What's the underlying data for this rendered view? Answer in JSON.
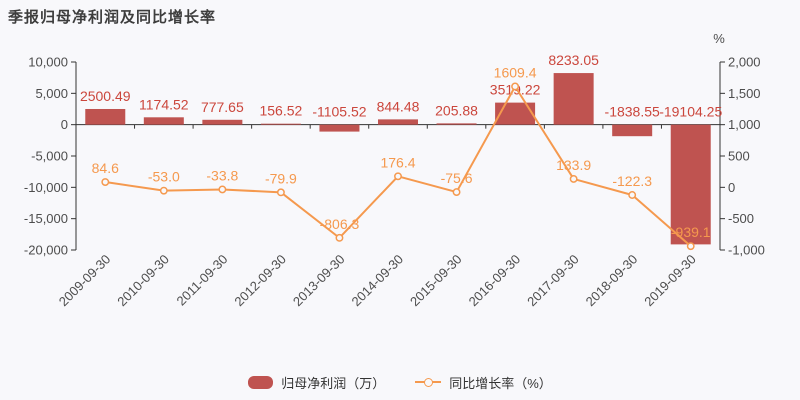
{
  "colors": {
    "background": "#f8f8fb",
    "bar": "#bf5350",
    "bar_label": "#cb463c",
    "line": "#f5994e",
    "axis": "#333333",
    "text": "#4d4d4d",
    "title": "#3d3d3d",
    "legend_text": "#333333"
  },
  "legend": {
    "bar_label": "归母净利润（万）",
    "line_label": "同比增长率（%）"
  },
  "chart_data": {
    "type": "bar",
    "title": "季报归母净利润及同比增长率",
    "categories": [
      "2009-09-30",
      "2010-09-30",
      "2011-09-30",
      "2012-09-30",
      "2013-09-30",
      "2014-09-30",
      "2015-09-30",
      "2016-09-30",
      "2017-09-30",
      "2018-09-30",
      "2019-09-30"
    ],
    "series": [
      {
        "name": "归母净利润（万）",
        "type": "bar",
        "y_axis": "left",
        "values": [
          2500.49,
          1174.52,
          777.65,
          156.52,
          -1105.52,
          844.48,
          205.88,
          3519.22,
          8233.05,
          -1838.55,
          -19104.25
        ],
        "labels": [
          "2500.49",
          "1174.52",
          "777.65",
          "156.52",
          "-1105.52",
          "844.48",
          "205.88",
          "3519.22",
          "8233.05",
          "-1838.55",
          "-19104.25"
        ]
      },
      {
        "name": "同比增长率（%）",
        "type": "line",
        "y_axis": "right",
        "values": [
          84.6,
          -53.0,
          -33.8,
          -79.9,
          -806.3,
          176.4,
          -75.6,
          1609.4,
          133.9,
          -122.3,
          -939.1
        ],
        "labels": [
          "84.6",
          "-53.0",
          "-33.8",
          "-79.9",
          "-806.3",
          "176.4",
          "-75.6",
          "1609.4",
          "133.9",
          "-122.3",
          "-939.1"
        ]
      }
    ],
    "left_axis": {
      "min": -20000,
      "max": 10000,
      "tick_values": [
        10000,
        5000,
        0,
        -5000,
        -10000,
        -15000,
        -20000
      ]
    },
    "right_axis": {
      "min": -1000,
      "max": 2000,
      "tick_values": [
        2000,
        1500,
        1000,
        500,
        0,
        -500,
        -1000
      ],
      "unit": "%"
    },
    "legend_position": "bottom",
    "grid": false,
    "x_label_rotation": -45
  }
}
